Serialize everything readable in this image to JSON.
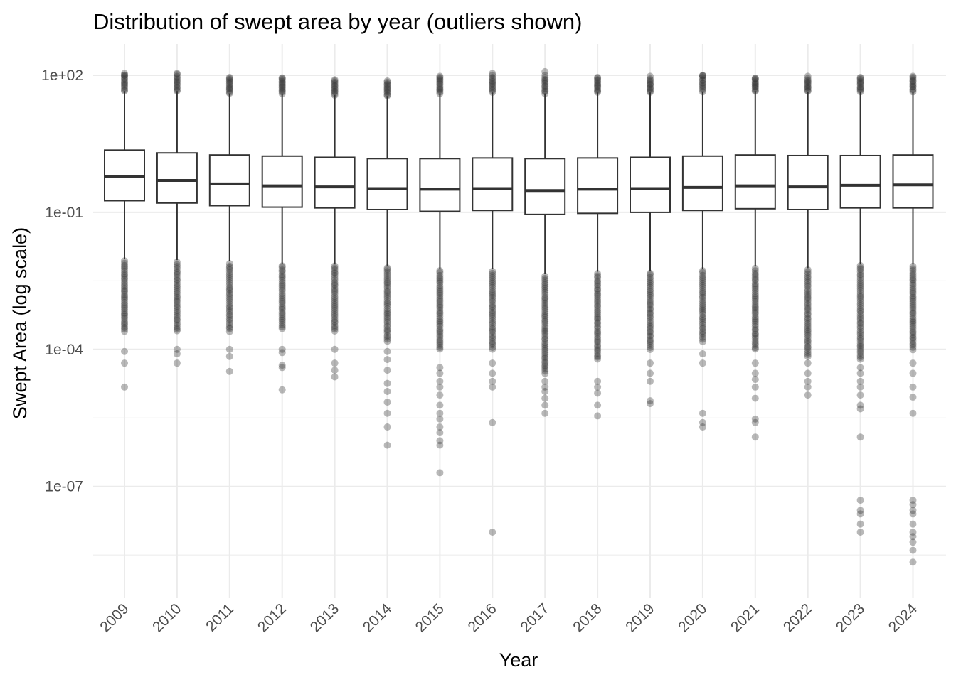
{
  "chart_data": {
    "type": "box",
    "title": "Distribution of swept area by year (outliers shown)",
    "xlabel": "Year",
    "ylabel": "Swept Area (log scale)",
    "y_scale": "log10",
    "ylim": [
      1e-09,
      500
    ],
    "y_ticks": [
      1e-07,
      0.0001,
      0.1,
      100
    ],
    "y_tick_labels": [
      "1e-07",
      "1e-04",
      "1e-01",
      "1e+02"
    ],
    "grid": true,
    "categories": [
      "2009",
      "2010",
      "2011",
      "2012",
      "2013",
      "2014",
      "2015",
      "2016",
      "2017",
      "2018",
      "2019",
      "2020",
      "2021",
      "2022",
      "2023",
      "2024"
    ],
    "boxes": [
      {
        "year": "2009",
        "whisker_low": 0.0095,
        "q1": 0.18,
        "median": 0.6,
        "q3": 2.3,
        "whisker_high": 45
      },
      {
        "year": "2010",
        "whisker_low": 0.009,
        "q1": 0.16,
        "median": 0.5,
        "q3": 2.0,
        "whisker_high": 45
      },
      {
        "year": "2011",
        "whisker_low": 0.0085,
        "q1": 0.14,
        "median": 0.42,
        "q3": 1.8,
        "whisker_high": 40
      },
      {
        "year": "2012",
        "whisker_low": 0.0075,
        "q1": 0.13,
        "median": 0.38,
        "q3": 1.7,
        "whisker_high": 40
      },
      {
        "year": "2013",
        "whisker_low": 0.0075,
        "q1": 0.125,
        "median": 0.36,
        "q3": 1.6,
        "whisker_high": 37
      },
      {
        "year": "2014",
        "whisker_low": 0.0068,
        "q1": 0.115,
        "median": 0.33,
        "q3": 1.5,
        "whisker_high": 35
      },
      {
        "year": "2015",
        "whisker_low": 0.0058,
        "q1": 0.105,
        "median": 0.32,
        "q3": 1.5,
        "whisker_high": 40
      },
      {
        "year": "2016",
        "whisker_low": 0.0058,
        "q1": 0.11,
        "median": 0.33,
        "q3": 1.55,
        "whisker_high": 42
      },
      {
        "year": "2017",
        "whisker_low": 0.0045,
        "q1": 0.09,
        "median": 0.3,
        "q3": 1.5,
        "whisker_high": 40
      },
      {
        "year": "2018",
        "whisker_low": 0.005,
        "q1": 0.095,
        "median": 0.32,
        "q3": 1.55,
        "whisker_high": 42
      },
      {
        "year": "2019",
        "whisker_low": 0.0052,
        "q1": 0.1,
        "median": 0.33,
        "q3": 1.6,
        "whisker_high": 42
      },
      {
        "year": "2020",
        "whisker_low": 0.0058,
        "q1": 0.11,
        "median": 0.35,
        "q3": 1.7,
        "whisker_high": 44
      },
      {
        "year": "2021",
        "whisker_low": 0.0065,
        "q1": 0.12,
        "median": 0.38,
        "q3": 1.8,
        "whisker_high": 45
      },
      {
        "year": "2022",
        "whisker_low": 0.006,
        "q1": 0.115,
        "median": 0.36,
        "q3": 1.75,
        "whisker_high": 44
      },
      {
        "year": "2023",
        "whisker_low": 0.0075,
        "q1": 0.125,
        "median": 0.39,
        "q3": 1.75,
        "whisker_high": 44
      },
      {
        "year": "2024",
        "whisker_low": 0.0072,
        "q1": 0.125,
        "median": 0.4,
        "q3": 1.8,
        "whisker_high": 44
      }
    ],
    "outlier_bands": [
      {
        "year": "2009",
        "upper": [
          45,
          100
        ],
        "lower": [
          0.00025,
          0.0085
        ]
      },
      {
        "year": "2010",
        "upper": [
          45,
          95
        ],
        "lower": [
          0.00025,
          0.008
        ]
      },
      {
        "year": "2011",
        "upper": [
          40,
          80
        ],
        "lower": [
          0.00025,
          0.0075
        ]
      },
      {
        "year": "2012",
        "upper": [
          40,
          80
        ],
        "lower": [
          0.00028,
          0.0068
        ]
      },
      {
        "year": "2013",
        "upper": [
          37,
          75
        ],
        "lower": [
          0.00025,
          0.0068
        ]
      },
      {
        "year": "2014",
        "upper": [
          35,
          70
        ],
        "lower": [
          0.00015,
          0.0062
        ]
      },
      {
        "year": "2015",
        "upper": [
          40,
          85
        ],
        "lower": [
          0.0001,
          0.0052
        ]
      },
      {
        "year": "2016",
        "upper": [
          42,
          90
        ],
        "lower": [
          0.0001,
          0.0052
        ]
      },
      {
        "year": "2017",
        "upper": [
          40,
          90
        ],
        "lower": [
          3e-05,
          0.004
        ]
      },
      {
        "year": "2018",
        "upper": [
          42,
          85
        ],
        "lower": [
          6e-05,
          0.0045
        ]
      },
      {
        "year": "2019",
        "upper": [
          42,
          85
        ],
        "lower": [
          0.0001,
          0.0047
        ]
      },
      {
        "year": "2020",
        "upper": [
          44,
          95
        ],
        "lower": [
          0.00015,
          0.0052
        ]
      },
      {
        "year": "2021",
        "upper": [
          45,
          85
        ],
        "lower": [
          0.0001,
          0.0058
        ]
      },
      {
        "year": "2022",
        "upper": [
          44,
          85
        ],
        "lower": [
          7e-05,
          0.0054
        ]
      },
      {
        "year": "2023",
        "upper": [
          44,
          85
        ],
        "lower": [
          6e-05,
          0.0068
        ]
      },
      {
        "year": "2024",
        "upper": [
          44,
          90
        ],
        "lower": [
          0.0001,
          0.0065
        ]
      }
    ],
    "outliers": [
      {
        "year": "2009",
        "values": [
          110,
          100,
          9e-05,
          5e-05,
          1.5e-05
        ]
      },
      {
        "year": "2010",
        "values": [
          110,
          105,
          0.0001,
          8e-05,
          5e-05
        ]
      },
      {
        "year": "2011",
        "values": [
          90,
          85,
          0.0001,
          7e-05,
          3.3e-05
        ]
      },
      {
        "year": "2012",
        "values": [
          88,
          85,
          0.0001,
          8.5e-05,
          4.5e-05,
          4e-05,
          1.3e-05
        ]
      },
      {
        "year": "2013",
        "values": [
          80,
          0.0001,
          5e-05,
          3.5e-05,
          2.5e-05
        ]
      },
      {
        "year": "2014",
        "values": [
          75,
          9e-05,
          6e-05,
          3.5e-05,
          1.8e-05,
          1.2e-05,
          7e-06,
          4e-06,
          2e-06,
          8e-07
        ]
      },
      {
        "year": "2015",
        "values": [
          95,
          90,
          4e-05,
          3e-05,
          2e-05,
          1.5e-05,
          1e-05,
          6e-06,
          4e-06,
          3e-06,
          2e-06,
          1.5e-06,
          1e-06,
          8e-07,
          2e-07
        ]
      },
      {
        "year": "2016",
        "values": [
          110,
          100,
          5e-05,
          3e-05,
          2e-05,
          1.5e-05,
          2.5e-06,
          1e-08
        ]
      },
      {
        "year": "2017",
        "values": [
          120,
          100,
          2e-05,
          1.5e-05,
          1.2e-05,
          8.5e-06,
          6e-06,
          4e-06
        ]
      },
      {
        "year": "2018",
        "values": [
          90,
          2e-05,
          1.5e-05,
          1.1e-05,
          6e-06,
          3.5e-06
        ]
      },
      {
        "year": "2019",
        "values": [
          95,
          5e-05,
          3e-05,
          2e-05,
          7.5e-06,
          6.5e-06
        ]
      },
      {
        "year": "2020",
        "values": [
          100,
          98,
          8e-05,
          5e-05,
          4e-06,
          2.5e-06,
          2e-06
        ]
      },
      {
        "year": "2021",
        "values": [
          85,
          5e-05,
          3e-05,
          2.2e-05,
          1.5e-05,
          8.5e-06,
          3e-06,
          2.5e-06,
          1.2e-06
        ]
      },
      {
        "year": "2022",
        "values": [
          95,
          5e-05,
          3e-05,
          2e-05,
          1.5e-05,
          1e-05
        ]
      },
      {
        "year": "2023",
        "values": [
          90,
          4e-05,
          3e-05,
          2e-05,
          1.5e-05,
          1e-05,
          6e-06,
          1.2e-06,
          5e-06,
          5e-08,
          3e-08,
          2.5e-08,
          1.5e-08,
          1e-08
        ]
      },
      {
        "year": "2024",
        "values": [
          95,
          5e-05,
          3e-05,
          1.5e-05,
          9e-06,
          4e-06,
          5e-08,
          4e-08,
          3e-08,
          2.5e-08,
          1.5e-08,
          1e-08,
          8e-09,
          6e-09,
          4e-09,
          2.2e-09
        ]
      }
    ],
    "colors": {
      "box_line": "#333333",
      "outlier": "#333333",
      "grid": "#ebebeb",
      "tick_text": "#4d4d4d",
      "title_text": "#000000"
    }
  }
}
